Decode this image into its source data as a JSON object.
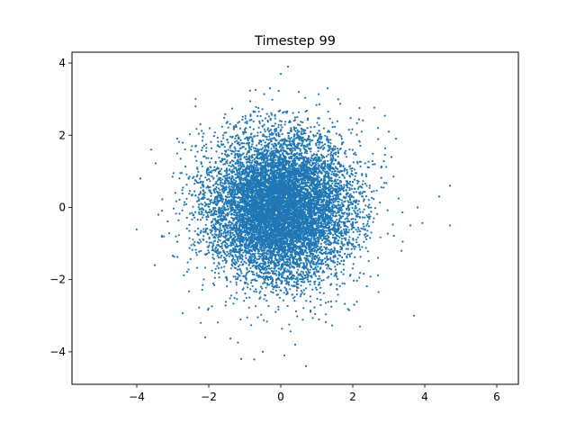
{
  "chart_data": {
    "type": "scatter",
    "title": "Timestep 99",
    "xlabel": "",
    "ylabel": "",
    "xlim": [
      -5.8,
      6.6
    ],
    "ylim": [
      -4.9,
      4.3
    ],
    "xticks": [
      -4,
      -2,
      0,
      2,
      4,
      6
    ],
    "yticks": [
      -4,
      -2,
      0,
      2,
      4
    ],
    "xtick_labels": [
      "−4",
      "−2",
      "0",
      "2",
      "4",
      "6"
    ],
    "ytick_labels": [
      "−4",
      "−2",
      "0",
      "2",
      "4"
    ],
    "grid": false,
    "series": [
      {
        "color": "#1f77b4",
        "distribution": "bivariate normal, approx. mean (0, 0), std 1.0 per axis",
        "approx_count": 10000,
        "x": [
          0.0,
          0.2,
          -0.3,
          4.7,
          4.7,
          -3.9,
          -3.6,
          -3.5,
          3.8,
          3.7,
          0.1,
          0.7,
          -1.1,
          -0.5,
          0.4,
          2.2,
          -2.1,
          0.5,
          2.7,
          -1.6,
          -3.4,
          1.3,
          4.4,
          3.6,
          3.0
        ],
        "y": [
          3.7,
          3.9,
          3.3,
          0.6,
          -0.5,
          0.8,
          1.6,
          -1.6,
          0.0,
          -3.0,
          -4.1,
          -4.4,
          -4.2,
          -4.0,
          -3.8,
          -3.3,
          -3.6,
          3.2,
          2.2,
          2.0,
          -0.2,
          3.3,
          0.3,
          -0.5,
          2.1
        ]
      }
    ]
  }
}
